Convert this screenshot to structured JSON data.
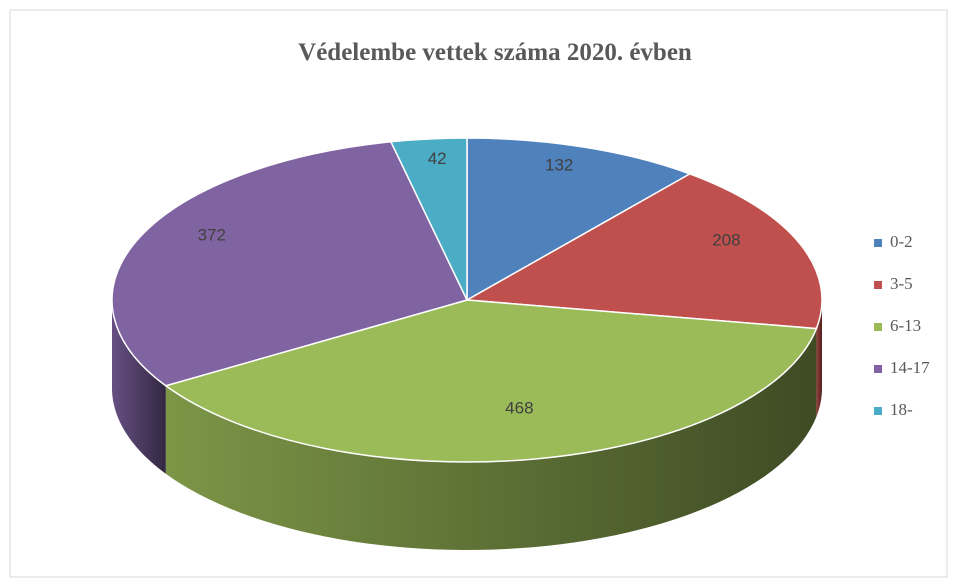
{
  "chart_data": {
    "type": "pie3d",
    "title": "Védelembe vettek száma 2020. évben",
    "categories": [
      "0-2",
      "3-5",
      "6-13",
      "14-17",
      "18-"
    ],
    "values": [
      132,
      208,
      468,
      372,
      42
    ],
    "colors": [
      "#4f81bd",
      "#c0504d",
      "#9bbb59",
      "#8064a2",
      "#4bacc6"
    ],
    "legend": "right"
  }
}
